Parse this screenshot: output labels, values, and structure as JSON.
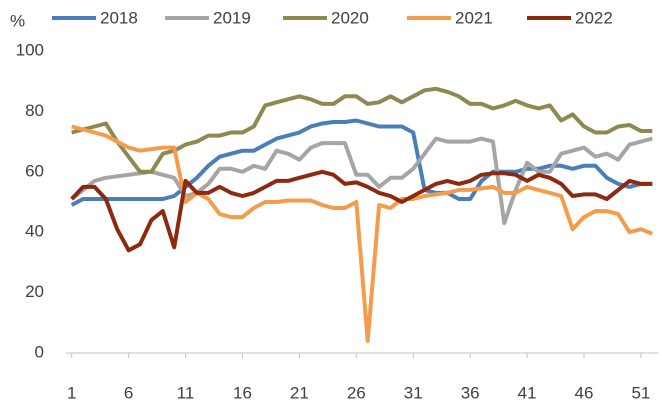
{
  "chart_data": {
    "type": "line",
    "y_label": "%",
    "x": [
      1,
      2,
      3,
      4,
      5,
      6,
      7,
      8,
      9,
      10,
      11,
      12,
      13,
      14,
      15,
      16,
      17,
      18,
      19,
      20,
      21,
      22,
      23,
      24,
      25,
      26,
      27,
      28,
      29,
      30,
      31,
      32,
      33,
      34,
      35,
      36,
      37,
      38,
      39,
      40,
      41,
      42,
      43,
      44,
      45,
      46,
      47,
      48,
      49,
      50,
      51,
      52
    ],
    "xlim": [
      0.5,
      52.5
    ],
    "xticks": [
      1,
      6,
      11,
      16,
      21,
      26,
      31,
      36,
      41,
      46,
      51
    ],
    "ylim": [
      0,
      100
    ],
    "yticks": [
      0,
      20,
      40,
      60,
      80,
      100
    ],
    "grid": false,
    "legend": "top",
    "series": [
      {
        "name": "2018",
        "color": "#4a7ebb",
        "values": [
          49,
          51,
          51,
          51,
          51,
          51,
          51,
          51,
          51,
          52,
          55,
          58,
          62,
          65,
          66,
          67,
          67,
          69,
          71,
          72,
          73,
          75,
          76,
          76.5,
          76.5,
          77,
          76,
          75,
          75,
          75,
          73,
          54,
          53,
          53,
          51,
          51,
          57,
          60,
          60,
          60,
          61,
          61,
          62,
          62,
          61,
          62,
          62,
          58,
          56,
          55,
          56,
          56
        ]
      },
      {
        "name": "2019",
        "color": "#a5a5a5",
        "values": [
          51,
          54,
          57,
          58,
          58.5,
          59,
          59.5,
          60,
          59,
          58,
          52,
          53,
          56,
          61,
          61,
          60,
          62,
          61,
          67,
          66,
          64,
          68,
          69.5,
          69.5,
          69.5,
          59,
          59,
          55,
          58,
          58,
          61,
          66,
          71,
          70,
          70,
          70,
          71,
          70,
          43,
          54,
          63,
          60,
          60,
          66,
          67,
          68,
          65,
          66,
          64,
          69,
          70,
          71
        ]
      },
      {
        "name": "2020",
        "color": "#8c8a4e",
        "values": [
          73,
          74,
          75,
          76,
          70,
          65,
          60,
          60,
          66,
          67,
          69,
          70,
          72,
          72,
          73,
          73,
          75,
          82,
          83,
          84,
          85,
          84,
          82.5,
          82.5,
          85,
          85,
          82.5,
          83,
          85,
          83,
          85,
          87,
          87.5,
          86.5,
          85,
          82.5,
          82.5,
          81,
          82,
          83.5,
          82,
          81,
          82,
          77,
          79,
          75,
          73,
          73,
          75,
          75.5,
          73.5,
          73.5
        ]
      },
      {
        "name": "2021",
        "color": "#f59c4c",
        "values": [
          75,
          74,
          73,
          72,
          70,
          68,
          67,
          67.5,
          68,
          68,
          50,
          53,
          51,
          46,
          45,
          45,
          48,
          50,
          50,
          50.5,
          50.5,
          50.5,
          49,
          48,
          48,
          50,
          4,
          49,
          48,
          51,
          51,
          52,
          52.5,
          53,
          54,
          54,
          54.5,
          55,
          53,
          53,
          55,
          54,
          53,
          52,
          41,
          45,
          47,
          47,
          46,
          40,
          41,
          39.5
        ]
      },
      {
        "name": "2022",
        "color": "#8b2a0e",
        "values": [
          51,
          55,
          55,
          51,
          41,
          34,
          36,
          44,
          47,
          35,
          57,
          53,
          53,
          55,
          53,
          52,
          53,
          55,
          57,
          57,
          58,
          59,
          60,
          59,
          56,
          56.5,
          55,
          53,
          52,
          50,
          52,
          54,
          56,
          57,
          56,
          57,
          59,
          59.5,
          59.5,
          59,
          57,
          59,
          58,
          56,
          52,
          52.5,
          52.5,
          51,
          54,
          57,
          56,
          56
        ]
      }
    ]
  }
}
